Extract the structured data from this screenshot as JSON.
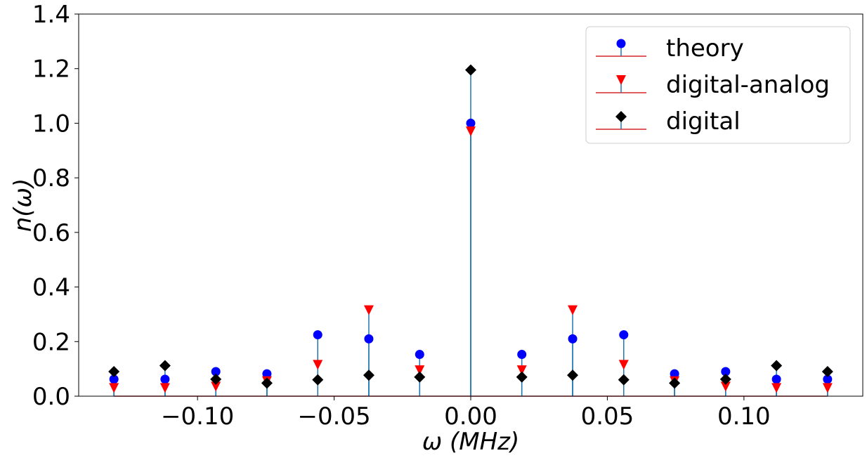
{
  "chart_data": {
    "type": "stem",
    "xlabel": "ω (MHz)",
    "ylabel": "n(ω)",
    "xlim": [
      -0.1435,
      0.1435
    ],
    "ylim": [
      0.0,
      1.4
    ],
    "x_ticks": [
      -0.1,
      -0.05,
      0.0,
      0.05,
      0.1
    ],
    "x_tick_labels": [
      "−0.10",
      "−0.05",
      "0.00",
      "0.05",
      "0.10"
    ],
    "y_ticks": [
      0.0,
      0.2,
      0.4,
      0.6,
      0.8,
      1.0,
      1.2,
      1.4
    ],
    "y_tick_labels": [
      "0.0",
      "0.2",
      "0.4",
      "0.6",
      "0.8",
      "1.0",
      "1.2",
      "1.4"
    ],
    "grid": false,
    "legend_position": "top-right",
    "stem_color": "#1f77b4",
    "baseline_color": "#d62728",
    "x": [
      -0.1306,
      -0.1119,
      -0.0933,
      -0.0746,
      -0.056,
      -0.0373,
      -0.0187,
      0.0,
      0.0187,
      0.0373,
      0.056,
      0.0746,
      0.0933,
      0.1119,
      0.1306
    ],
    "series": [
      {
        "name": "theory",
        "marker": "circle",
        "color": "#0000ff",
        "values": [
          0.062,
          0.062,
          0.09,
          0.082,
          0.225,
          0.21,
          0.153,
          1.0,
          0.153,
          0.21,
          0.225,
          0.082,
          0.09,
          0.062,
          0.062
        ]
      },
      {
        "name": "digital-analog",
        "marker": "triangle-down",
        "color": "#ff0000",
        "values": [
          0.03,
          0.03,
          0.035,
          0.055,
          0.115,
          0.315,
          0.095,
          0.97,
          0.095,
          0.315,
          0.115,
          0.055,
          0.035,
          0.03,
          0.03
        ]
      },
      {
        "name": "digital",
        "marker": "diamond",
        "color": "#000000",
        "values": [
          0.09,
          0.112,
          0.062,
          0.048,
          0.06,
          0.077,
          0.07,
          1.195,
          0.07,
          0.077,
          0.06,
          0.048,
          0.062,
          0.112,
          0.09
        ]
      }
    ]
  }
}
